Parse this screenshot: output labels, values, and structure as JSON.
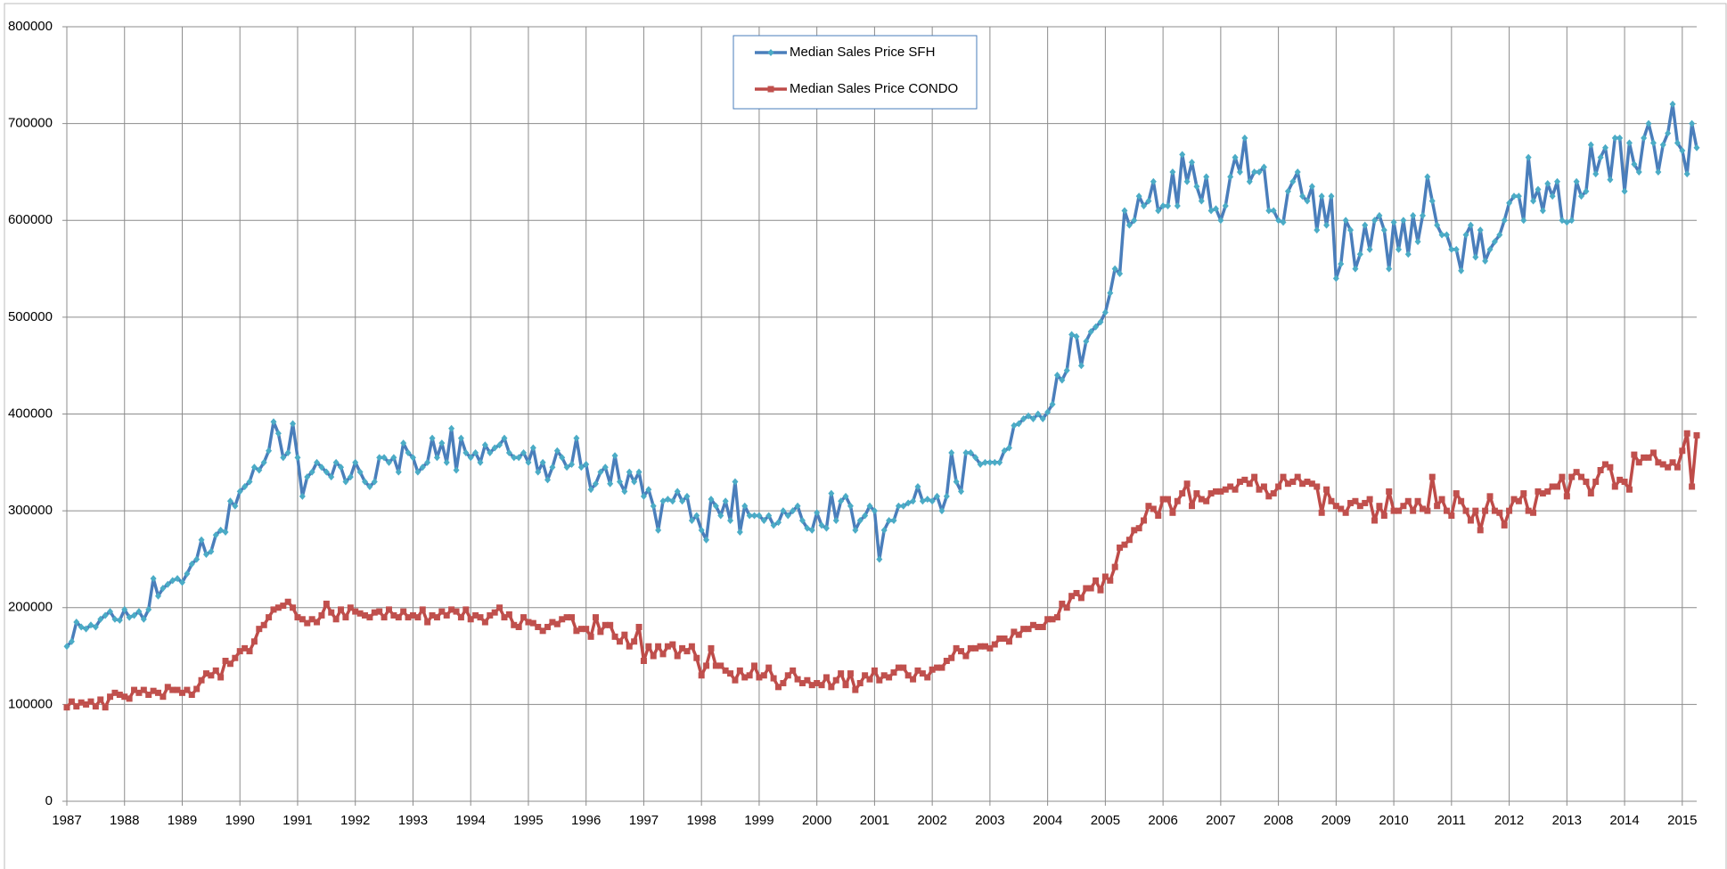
{
  "chart_data": {
    "type": "line",
    "categories": [
      "1987",
      null,
      null,
      null,
      null,
      null,
      null,
      null,
      null,
      null,
      null,
      null,
      "1988",
      null,
      null,
      null,
      null,
      null,
      null,
      null,
      null,
      null,
      null,
      null,
      "1989",
      null,
      null,
      null,
      null,
      null,
      null,
      null,
      null,
      null,
      null,
      null,
      "1990",
      null,
      null,
      null,
      null,
      null,
      null,
      null,
      null,
      null,
      null,
      null,
      "1991",
      null,
      null,
      null,
      null,
      null,
      null,
      null,
      null,
      null,
      null,
      null,
      "1992",
      null,
      null,
      null,
      null,
      null,
      null,
      null,
      null,
      null,
      null,
      null,
      "1993",
      null,
      null,
      null,
      null,
      null,
      null,
      null,
      null,
      null,
      null,
      null,
      "1994",
      null,
      null,
      null,
      null,
      null,
      null,
      null,
      null,
      null,
      null,
      null,
      "1995",
      null,
      null,
      null,
      null,
      null,
      null,
      null,
      null,
      null,
      null,
      null,
      "1996",
      null,
      null,
      null,
      null,
      null,
      null,
      null,
      null,
      null,
      null,
      null,
      "1997",
      null,
      null,
      null,
      null,
      null,
      null,
      null,
      null,
      null,
      null,
      null,
      "1998",
      null,
      null,
      null,
      null,
      null,
      null,
      null,
      null,
      null,
      null,
      null,
      "1999",
      null,
      null,
      null,
      null,
      null,
      null,
      null,
      null,
      null,
      null,
      null,
      "2000",
      null,
      null,
      null,
      null,
      null,
      null,
      null,
      null,
      null,
      null,
      null,
      "2001",
      null,
      null,
      null,
      null,
      null,
      null,
      null,
      null,
      null,
      null,
      null,
      "2002",
      null,
      null,
      null,
      null,
      null,
      null,
      null,
      null,
      null,
      null,
      null,
      "2003",
      null,
      null,
      null,
      null,
      null,
      null,
      null,
      null,
      null,
      null,
      null,
      "2004",
      null,
      null,
      null,
      null,
      null,
      null,
      null,
      null,
      null,
      null,
      null,
      "2005",
      null,
      null,
      null,
      null,
      null,
      null,
      null,
      null,
      null,
      null,
      null,
      "2006",
      null,
      null,
      null,
      null,
      null,
      null,
      null,
      null,
      null,
      null,
      null,
      "2007",
      null,
      null,
      null,
      null,
      null,
      null,
      null,
      null,
      null,
      null,
      null,
      "2008",
      null,
      null,
      null,
      null,
      null,
      null,
      null,
      null,
      null,
      null,
      null,
      "2009",
      null,
      null,
      null,
      null,
      null,
      null,
      null,
      null,
      null,
      null,
      null,
      "2010",
      null,
      null,
      null,
      null,
      null,
      null,
      null,
      null,
      null,
      null,
      null,
      "2011",
      null,
      null,
      null,
      null,
      null,
      null,
      null,
      null,
      null,
      null,
      null,
      "2012",
      null,
      null,
      null,
      null,
      null,
      null,
      null,
      null,
      null,
      null,
      null,
      "2013",
      null,
      null,
      null,
      null,
      null,
      null,
      null,
      null,
      null,
      null,
      null,
      "2014",
      null,
      null,
      null,
      null,
      null,
      null,
      null,
      null,
      null,
      null,
      null,
      "2015",
      null,
      null,
      null
    ],
    "series": [
      {
        "name": "Median Sales Price SFH",
        "color": "#4a7ebb",
        "marker_color": "#4bacc6",
        "marker": "diamond",
        "values": [
          160000,
          165000,
          185000,
          180000,
          178000,
          182000,
          180000,
          188000,
          192000,
          196000,
          188000,
          187000,
          198000,
          190000,
          192000,
          196000,
          188000,
          198000,
          230000,
          212000,
          220000,
          224000,
          228000,
          230000,
          226000,
          235000,
          245000,
          250000,
          270000,
          255000,
          258000,
          275000,
          280000,
          278000,
          310000,
          305000,
          320000,
          325000,
          330000,
          345000,
          342000,
          350000,
          362000,
          392000,
          380000,
          355000,
          360000,
          390000,
          355000,
          315000,
          335000,
          340000,
          350000,
          345000,
          340000,
          335000,
          350000,
          345000,
          330000,
          335000,
          350000,
          340000,
          330000,
          325000,
          330000,
          355000,
          355000,
          350000,
          355000,
          340000,
          370000,
          360000,
          355000,
          340000,
          345000,
          350000,
          375000,
          355000,
          370000,
          350000,
          385000,
          342000,
          375000,
          360000,
          355000,
          360000,
          350000,
          368000,
          360000,
          365000,
          368000,
          375000,
          360000,
          355000,
          355000,
          360000,
          350000,
          365000,
          340000,
          350000,
          332000,
          345000,
          362000,
          355000,
          345000,
          348000,
          375000,
          345000,
          348000,
          322000,
          328000,
          340000,
          345000,
          328000,
          357000,
          330000,
          320000,
          340000,
          330000,
          340000,
          315000,
          322000,
          305000,
          280000,
          310000,
          312000,
          310000,
          320000,
          310000,
          315000,
          290000,
          295000,
          280000,
          270000,
          312000,
          305000,
          295000,
          310000,
          290000,
          330000,
          278000,
          305000,
          295000,
          295000,
          295000,
          290000,
          295000,
          285000,
          288000,
          300000,
          295000,
          300000,
          305000,
          290000,
          282000,
          280000,
          298000,
          285000,
          282000,
          318000,
          290000,
          310000,
          315000,
          305000,
          280000,
          290000,
          295000,
          305000,
          300000,
          250000,
          280000,
          290000,
          290000,
          305000,
          305000,
          308000,
          310000,
          325000,
          310000,
          312000,
          310000,
          315000,
          300000,
          315000,
          360000,
          330000,
          320000,
          360000,
          360000,
          355000,
          348000,
          350000,
          350000,
          350000,
          350000,
          362000,
          365000,
          388000,
          390000,
          395000,
          398000,
          395000,
          400000,
          395000,
          402000,
          410000,
          440000,
          435000,
          445000,
          482000,
          480000,
          450000,
          475000,
          485000,
          490000,
          495000,
          505000,
          525000,
          550000,
          545000,
          610000,
          595000,
          600000,
          625000,
          615000,
          620000,
          640000,
          610000,
          615000,
          615000,
          650000,
          615000,
          668000,
          640000,
          660000,
          635000,
          620000,
          645000,
          610000,
          612000,
          600000,
          615000,
          645000,
          665000,
          650000,
          685000,
          640000,
          650000,
          650000,
          655000,
          610000,
          610000,
          600000,
          598000,
          630000,
          640000,
          650000,
          625000,
          620000,
          635000,
          590000,
          625000,
          595000,
          625000,
          540000,
          555000,
          600000,
          590000,
          550000,
          565000,
          595000,
          570000,
          600000,
          605000,
          590000,
          550000,
          598000,
          570000,
          600000,
          565000,
          605000,
          578000,
          605000,
          645000,
          620000,
          595000,
          585000,
          585000,
          570000,
          570000,
          548000,
          585000,
          595000,
          562000,
          590000,
          558000,
          570000,
          578000,
          585000,
          600000,
          618000,
          625000,
          625000,
          600000,
          665000,
          620000,
          632000,
          610000,
          638000,
          625000,
          640000,
          600000,
          598000,
          600000,
          640000,
          625000,
          630000,
          678000,
          648000,
          665000,
          675000,
          642000,
          685000,
          685000,
          630000,
          680000,
          658000,
          650000,
          685000,
          700000,
          680000,
          650000,
          678000,
          690000,
          720000,
          680000,
          672000,
          648000,
          700000,
          675000
        ]
      },
      {
        "name": "Median Sales Price CONDO",
        "color": "#be4b48",
        "marker_color": "#c0504d",
        "marker": "square",
        "values": [
          97000,
          103000,
          98000,
          102000,
          100000,
          103000,
          98000,
          105000,
          97000,
          108000,
          112000,
          110000,
          108000,
          106000,
          115000,
          112000,
          115000,
          110000,
          114000,
          112000,
          108000,
          118000,
          115000,
          115000,
          112000,
          115000,
          110000,
          116000,
          125000,
          132000,
          130000,
          135000,
          128000,
          145000,
          142000,
          148000,
          155000,
          158000,
          155000,
          165000,
          178000,
          182000,
          190000,
          198000,
          200000,
          202000,
          206000,
          200000,
          190000,
          188000,
          184000,
          188000,
          185000,
          192000,
          204000,
          195000,
          188000,
          198000,
          190000,
          200000,
          196000,
          194000,
          192000,
          190000,
          195000,
          196000,
          190000,
          198000,
          192000,
          190000,
          196000,
          190000,
          192000,
          190000,
          198000,
          185000,
          192000,
          190000,
          196000,
          192000,
          198000,
          196000,
          190000,
          198000,
          188000,
          192000,
          190000,
          185000,
          192000,
          195000,
          200000,
          190000,
          193000,
          182000,
          180000,
          190000,
          185000,
          184000,
          180000,
          176000,
          180000,
          185000,
          183000,
          188000,
          190000,
          190000,
          176000,
          178000,
          178000,
          170000,
          190000,
          175000,
          182000,
          182000,
          170000,
          165000,
          172000,
          160000,
          165000,
          180000,
          145000,
          160000,
          150000,
          160000,
          152000,
          160000,
          162000,
          150000,
          158000,
          155000,
          160000,
          148000,
          130000,
          140000,
          158000,
          140000,
          140000,
          135000,
          132000,
          125000,
          135000,
          128000,
          130000,
          140000,
          128000,
          130000,
          138000,
          127000,
          118000,
          122000,
          130000,
          135000,
          126000,
          122000,
          125000,
          120000,
          122000,
          120000,
          128000,
          118000,
          125000,
          132000,
          120000,
          132000,
          115000,
          122000,
          130000,
          126000,
          135000,
          125000,
          130000,
          128000,
          133000,
          138000,
          138000,
          130000,
          126000,
          135000,
          132000,
          128000,
          136000,
          138000,
          138000,
          145000,
          148000,
          158000,
          155000,
          150000,
          158000,
          158000,
          160000,
          160000,
          158000,
          162000,
          168000,
          168000,
          165000,
          175000,
          172000,
          178000,
          178000,
          182000,
          180000,
          180000,
          188000,
          188000,
          190000,
          204000,
          200000,
          212000,
          215000,
          210000,
          220000,
          220000,
          228000,
          218000,
          232000,
          228000,
          242000,
          262000,
          265000,
          270000,
          280000,
          282000,
          290000,
          305000,
          302000,
          295000,
          312000,
          312000,
          298000,
          310000,
          318000,
          328000,
          305000,
          318000,
          312000,
          310000,
          318000,
          320000,
          320000,
          322000,
          325000,
          322000,
          330000,
          332000,
          328000,
          335000,
          322000,
          325000,
          315000,
          318000,
          325000,
          335000,
          328000,
          330000,
          335000,
          328000,
          330000,
          328000,
          325000,
          298000,
          322000,
          310000,
          305000,
          302000,
          298000,
          308000,
          310000,
          305000,
          308000,
          312000,
          290000,
          305000,
          295000,
          320000,
          300000,
          300000,
          305000,
          310000,
          300000,
          310000,
          302000,
          300000,
          335000,
          305000,
          312000,
          300000,
          295000,
          318000,
          310000,
          300000,
          290000,
          300000,
          280000,
          300000,
          315000,
          300000,
          298000,
          285000,
          300000,
          312000,
          310000,
          318000,
          300000,
          298000,
          320000,
          318000,
          320000,
          325000,
          325000,
          335000,
          315000,
          335000,
          340000,
          335000,
          330000,
          318000,
          330000,
          342000,
          348000,
          345000,
          325000,
          332000,
          330000,
          322000,
          358000,
          350000,
          355000,
          355000,
          360000,
          350000,
          348000,
          345000,
          350000,
          345000,
          362000,
          380000,
          325000,
          378000
        ]
      }
    ],
    "ylim": [
      0,
      800000
    ],
    "yticks": [
      0,
      100000,
      200000,
      300000,
      400000,
      500000,
      600000,
      700000,
      800000
    ],
    "grid": true,
    "legend": "top"
  }
}
